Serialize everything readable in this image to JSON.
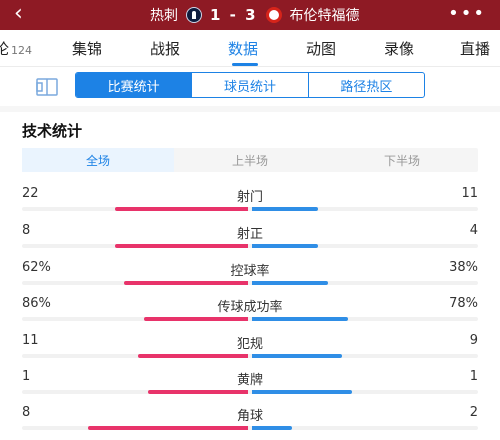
{
  "header": {
    "home_team": "热刺",
    "score": "1 - 3",
    "away_team": "布伦特福德",
    "home_crest_icon": "tottenham-crest",
    "away_crest_icon": "brentford-crest",
    "back_icon": "chevron-left-icon",
    "more_icon": "more-dots-icon",
    "more_label": "•••"
  },
  "tabs": [
    {
      "label": "论",
      "badge": "124"
    },
    {
      "label": "集锦"
    },
    {
      "label": "战报"
    },
    {
      "label": "数据"
    },
    {
      "label": "动图"
    },
    {
      "label": "录像"
    },
    {
      "label": "直播"
    }
  ],
  "active_tab": "数据",
  "subtabs": [
    "比赛统计",
    "球员统计",
    "路径热区"
  ],
  "active_subtab": "比赛统计",
  "section_title": "技术统计",
  "periods": [
    "全场",
    "上半场",
    "下半场"
  ],
  "active_period": "全场",
  "colors": {
    "home": "#e8336a",
    "away": "#2f8ee6",
    "accent": "#1d82e5",
    "header_bg": "#8e1a24"
  },
  "stats": [
    {
      "label": "射门",
      "home": "22",
      "away": "11",
      "home_share": 0.667
    },
    {
      "label": "射正",
      "home": "8",
      "away": "4",
      "home_share": 0.667
    },
    {
      "label": "控球率",
      "home": "62%",
      "away": "38%",
      "home_share": 0.62
    },
    {
      "label": "传球成功率",
      "home": "86%",
      "away": "78%",
      "home_share": 0.52
    },
    {
      "label": "犯规",
      "home": "11",
      "away": "9",
      "home_share": 0.55
    },
    {
      "label": "黄牌",
      "home": "1",
      "away": "1",
      "home_share": 0.5
    },
    {
      "label": "角球",
      "home": "8",
      "away": "2",
      "home_share": 0.8
    }
  ]
}
